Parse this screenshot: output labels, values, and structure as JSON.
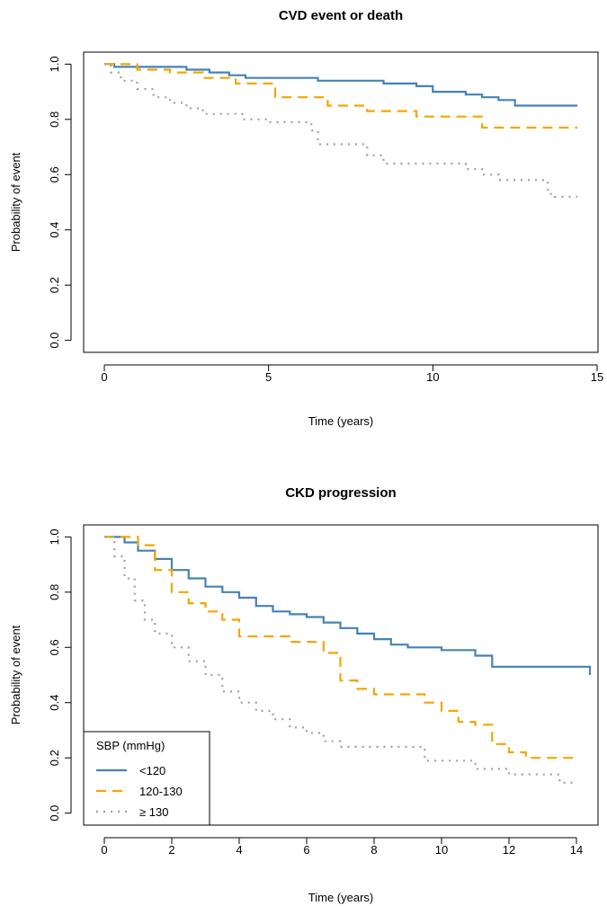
{
  "chart_data": [
    {
      "type": "line",
      "title": "CVD event or death",
      "xlabel": "Time (years)",
      "ylabel": "Probability of event",
      "xlim": [
        0,
        15
      ],
      "ylim": [
        0,
        1
      ],
      "xticks": [
        0,
        5,
        10,
        15
      ],
      "xtick_labels": [
        "0",
        "5",
        "10",
        "15"
      ],
      "yticks": [
        0,
        0.2,
        0.4,
        0.6,
        0.8,
        1.0
      ],
      "ytick_labels": [
        "0.0",
        "0.2",
        "0.4",
        "0.6",
        "0.8",
        "1.0"
      ],
      "grid": false,
      "series": [
        {
          "name": "<120",
          "color": "#4682b4",
          "style": "solid",
          "x": [
            0,
            0.3,
            2.5,
            3.2,
            3.8,
            4.3,
            6.5,
            8.5,
            9.5,
            10.0,
            11.0,
            11.5,
            12.0,
            12.5,
            14.4
          ],
          "y": [
            1.0,
            0.99,
            0.98,
            0.97,
            0.96,
            0.95,
            0.94,
            0.93,
            0.92,
            0.9,
            0.89,
            0.88,
            0.87,
            0.85,
            0.85
          ]
        },
        {
          "name": "120-130",
          "color": "#f5a500",
          "style": "dashed",
          "x": [
            0,
            1.0,
            2.0,
            3.0,
            4.0,
            5.2,
            6.8,
            8.0,
            9.5,
            11.5,
            14.4
          ],
          "y": [
            1.0,
            0.98,
            0.97,
            0.95,
            0.93,
            0.88,
            0.85,
            0.83,
            0.81,
            0.77,
            0.77
          ]
        },
        {
          "name": "≥ 130",
          "color": "#a0a0a0",
          "style": "dotted",
          "x": [
            0,
            0.2,
            0.5,
            1.0,
            1.5,
            2.0,
            2.5,
            3.0,
            4.2,
            5.0,
            6.3,
            6.5,
            8.0,
            8.5,
            11.0,
            11.5,
            12.0,
            13.5,
            13.7,
            14.4
          ],
          "y": [
            1.0,
            0.97,
            0.94,
            0.91,
            0.88,
            0.86,
            0.84,
            0.82,
            0.8,
            0.79,
            0.76,
            0.71,
            0.67,
            0.64,
            0.62,
            0.6,
            0.58,
            0.53,
            0.52,
            0.52
          ]
        }
      ]
    },
    {
      "type": "line",
      "title": "CKD progression",
      "xlabel": "Time (years)",
      "ylabel": "Probability of event",
      "xlim": [
        0,
        14.4
      ],
      "ylim": [
        0,
        1
      ],
      "xticks": [
        0,
        2,
        4,
        6,
        8,
        10,
        12,
        14
      ],
      "xtick_labels": [
        "0",
        "2",
        "4",
        "6",
        "8",
        "10",
        "12",
        "14"
      ],
      "yticks": [
        0,
        0.2,
        0.4,
        0.6,
        0.8,
        1.0
      ],
      "ytick_labels": [
        "0.0",
        "0.2",
        "0.4",
        "0.6",
        "0.8",
        "1.0"
      ],
      "grid": false,
      "legend": {
        "title": "SBP (mmHg)",
        "position": "bottom-left",
        "entries": [
          "<120",
          "120-130",
          "≥ 130"
        ]
      },
      "series": [
        {
          "name": "<120",
          "color": "#4682b4",
          "style": "solid",
          "x": [
            0,
            0.6,
            1.0,
            1.5,
            2.0,
            2.5,
            3.0,
            3.5,
            4.0,
            4.5,
            5.0,
            5.5,
            6.0,
            6.5,
            7.0,
            7.5,
            8.0,
            8.5,
            9.0,
            10.0,
            11.0,
            11.5,
            14.4
          ],
          "y": [
            1.0,
            0.98,
            0.95,
            0.92,
            0.88,
            0.85,
            0.82,
            0.8,
            0.78,
            0.75,
            0.73,
            0.72,
            0.71,
            0.69,
            0.67,
            0.65,
            0.63,
            0.61,
            0.6,
            0.59,
            0.57,
            0.53,
            0.5
          ]
        },
        {
          "name": "120-130",
          "color": "#f5a500",
          "style": "dashed",
          "x": [
            0,
            1.0,
            1.5,
            2.0,
            2.5,
            3.0,
            3.5,
            4.0,
            5.5,
            6.5,
            7.0,
            7.5,
            8.0,
            9.5,
            10.0,
            10.5,
            11.0,
            11.5,
            12.0,
            12.5,
            14.0
          ],
          "y": [
            1.0,
            0.97,
            0.88,
            0.8,
            0.76,
            0.73,
            0.7,
            0.64,
            0.62,
            0.58,
            0.48,
            0.45,
            0.43,
            0.4,
            0.37,
            0.33,
            0.32,
            0.25,
            0.22,
            0.2,
            0.2
          ]
        },
        {
          "name": "≥ 130",
          "color": "#a0a0a0",
          "style": "dotted",
          "x": [
            0,
            0.3,
            0.6,
            0.9,
            1.2,
            1.5,
            2.0,
            2.5,
            3.0,
            3.5,
            4.0,
            4.5,
            5.0,
            5.5,
            6.0,
            6.5,
            7.0,
            9.5,
            11.0,
            12.0,
            13.5,
            14.0
          ],
          "y": [
            1.0,
            0.93,
            0.85,
            0.77,
            0.7,
            0.65,
            0.6,
            0.55,
            0.5,
            0.44,
            0.4,
            0.37,
            0.34,
            0.31,
            0.29,
            0.26,
            0.24,
            0.19,
            0.16,
            0.14,
            0.11,
            0.11
          ]
        }
      ]
    }
  ]
}
